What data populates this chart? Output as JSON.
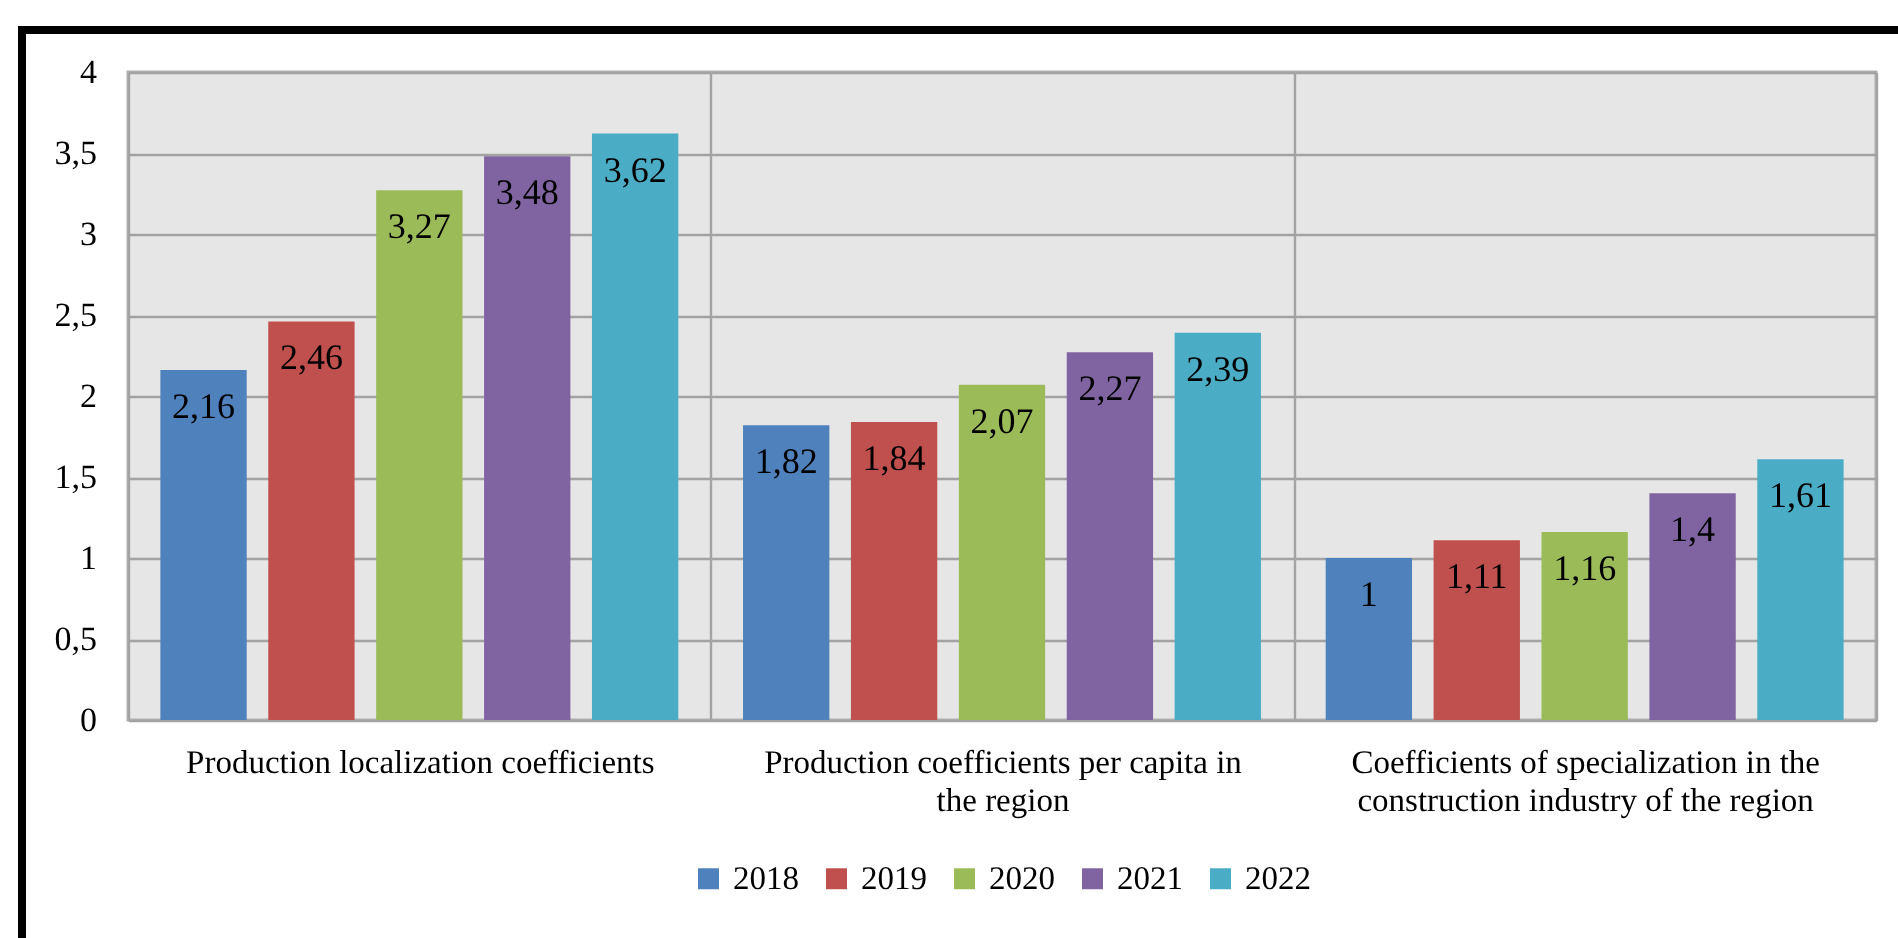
{
  "chart_data": {
    "type": "bar",
    "categories": [
      "Production localization coefficients",
      "Production coefficients per capita in the region",
      "Coefficients of specialization in the construction industry of the region"
    ],
    "series": [
      {
        "name": "2018",
        "color": "#4f81bd",
        "values": [
          2.16,
          1.82,
          1
        ],
        "value_labels": [
          "2,16",
          "1,82",
          "1"
        ]
      },
      {
        "name": "2019",
        "color": "#c0504d",
        "values": [
          2.46,
          1.84,
          1.11
        ],
        "value_labels": [
          "2,46",
          "1,84",
          "1,11"
        ]
      },
      {
        "name": "2020",
        "color": "#9bbb59",
        "values": [
          3.27,
          2.07,
          1.16
        ],
        "value_labels": [
          "3,27",
          "2,07",
          "1,16"
        ]
      },
      {
        "name": "2021",
        "color": "#8064a2",
        "values": [
          3.48,
          2.27,
          1.4
        ],
        "value_labels": [
          "3,48",
          "2,27",
          "1,4"
        ]
      },
      {
        "name": "2022",
        "color": "#4bacc6",
        "values": [
          3.62,
          2.39,
          1.61
        ],
        "value_labels": [
          "3,62",
          "2,39",
          "1,61"
        ]
      }
    ],
    "ylim": [
      0,
      4
    ],
    "yticks": [
      0,
      {
        "value": 0.5,
        "label": "0,5"
      },
      1,
      {
        "value": 1.5,
        "label": "1,5"
      },
      2,
      {
        "value": 2.5,
        "label": "2,5"
      },
      3,
      {
        "value": 3.5,
        "label": "3,5"
      },
      4
    ],
    "grid": true,
    "legend": "bottom"
  }
}
